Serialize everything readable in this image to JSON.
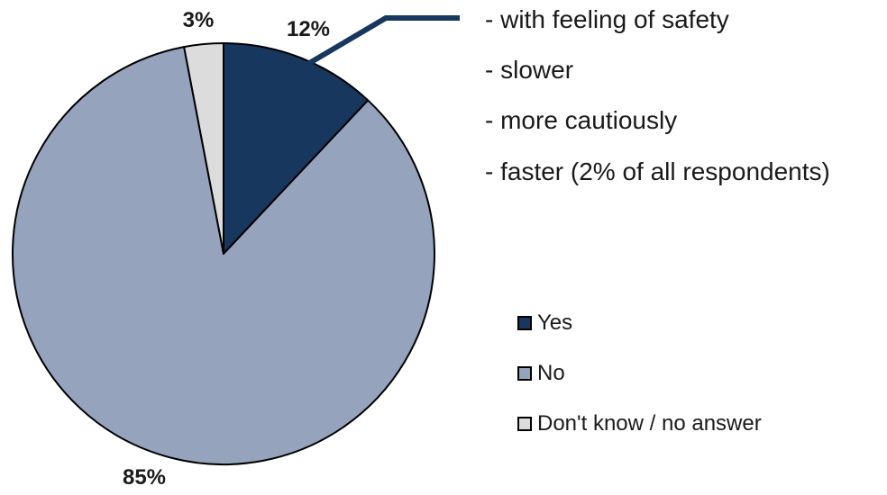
{
  "chart_data": {
    "type": "pie",
    "categories": [
      "Yes",
      "No",
      "Don't know / no answer"
    ],
    "values": [
      12,
      85,
      3
    ],
    "labels": [
      "12%",
      "85%",
      "3%"
    ],
    "colors": [
      "#17375e",
      "#95a3bd",
      "#dcdcdc"
    ],
    "legend_position": "right",
    "annotation_lines": [
      "- with feeling of safety",
      "- slower",
      "- more cautiously",
      "- faster (2% of all respondents)"
    ]
  }
}
